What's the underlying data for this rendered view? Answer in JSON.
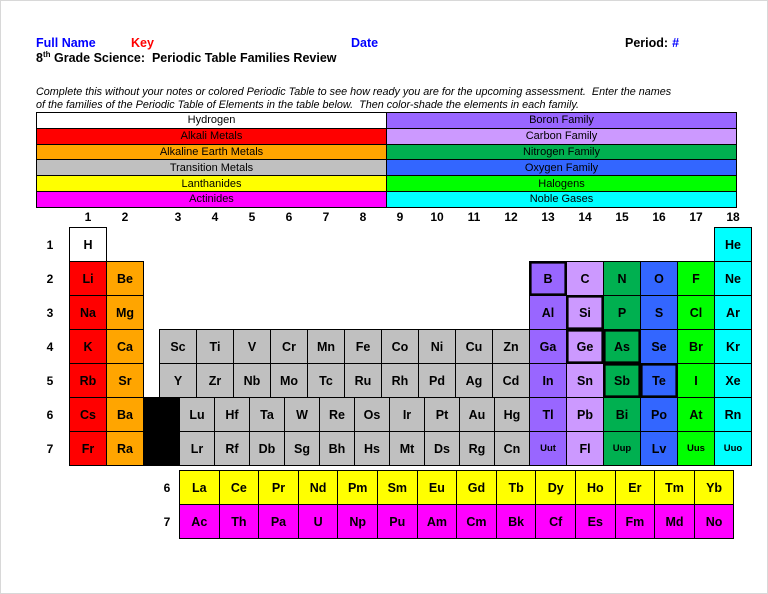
{
  "header": {
    "full_name_label": "Full Name",
    "key_label": "Key",
    "date_label": "Date",
    "period_label": "Period:",
    "period_value": "#",
    "title_num": "8",
    "title_sup": "th",
    "title_rest": " Grade Science:  Periodic Table Families Review"
  },
  "instructions": {
    "line1": "Complete this without your notes or colored Periodic Table to see how ready you are for the upcoming assessment.  Enter the names",
    "line2": "of the families of the Periodic Table of Elements in the table below.  Then color-shade the elements in each family."
  },
  "colors": {
    "text_blue": "#0000FF",
    "text_red": "#FF0000",
    "hydrogen": "#FFFFFF",
    "alkali": "#FF0000",
    "alkaline": "#FFA500",
    "transition": "#C0C0C0",
    "lanthanide": "#FFFF00",
    "actinide": "#FF00FF",
    "boron": "#9966FF",
    "carbon": "#CC99FF",
    "nitrogen": "#00B050",
    "oxygen": "#3366FF",
    "halogen": "#00FF00",
    "noble": "#00FFFF",
    "gap": "#000000"
  },
  "key_table": {
    "left": [
      {
        "label": "Hydrogen",
        "fam": "hydrogen"
      },
      {
        "label": "Alkali Metals",
        "fam": "alkali"
      },
      {
        "label": "Alkaline Earth Metals",
        "fam": "alkaline"
      },
      {
        "label": "Transition Metals",
        "fam": "transition"
      },
      {
        "label": "Lanthanides",
        "fam": "lanthanide"
      },
      {
        "label": "Actinides",
        "fam": "actinide"
      }
    ],
    "right": [
      {
        "label": "Boron Family",
        "fam": "boron"
      },
      {
        "label": "Carbon Family",
        "fam": "carbon"
      },
      {
        "label": "Nitrogen Family",
        "fam": "nitrogen"
      },
      {
        "label": "Oxygen Family",
        "fam": "oxygen"
      },
      {
        "label": "Halogens",
        "fam": "halogen"
      },
      {
        "label": "Noble Gases",
        "fam": "noble"
      }
    ]
  },
  "table": {
    "group_numbers": [
      "1",
      "2",
      "3",
      "4",
      "5",
      "6",
      "7",
      "8",
      "9",
      "10",
      "11",
      "12",
      "13",
      "14",
      "15",
      "16",
      "17",
      "18"
    ],
    "rows": [
      {
        "period": "1",
        "cells": [
          {
            "sym": "H",
            "col": 1,
            "fam": "hydrogen"
          },
          {
            "sym": "He",
            "col": 18,
            "fam": "noble"
          }
        ]
      },
      {
        "period": "2",
        "cells": [
          {
            "sym": "Li",
            "col": 1,
            "fam": "alkali"
          },
          {
            "sym": "Be",
            "col": 2,
            "fam": "alkaline"
          },
          {
            "sym": "B",
            "col": 13,
            "fam": "boron",
            "bold": true
          },
          {
            "sym": "C",
            "col": 14,
            "fam": "carbon"
          },
          {
            "sym": "N",
            "col": 15,
            "fam": "nitrogen"
          },
          {
            "sym": "O",
            "col": 16,
            "fam": "oxygen"
          },
          {
            "sym": "F",
            "col": 17,
            "fam": "halogen"
          },
          {
            "sym": "Ne",
            "col": 18,
            "fam": "noble"
          }
        ]
      },
      {
        "period": "3",
        "cells": [
          {
            "sym": "Na",
            "col": 1,
            "fam": "alkali"
          },
          {
            "sym": "Mg",
            "col": 2,
            "fam": "alkaline"
          },
          {
            "sym": "Al",
            "col": 13,
            "fam": "boron"
          },
          {
            "sym": "Si",
            "col": 14,
            "fam": "carbon",
            "bold": true
          },
          {
            "sym": "P",
            "col": 15,
            "fam": "nitrogen"
          },
          {
            "sym": "S",
            "col": 16,
            "fam": "oxygen"
          },
          {
            "sym": "Cl",
            "col": 17,
            "fam": "halogen"
          },
          {
            "sym": "Ar",
            "col": 18,
            "fam": "noble"
          }
        ]
      },
      {
        "period": "4",
        "cells": [
          {
            "sym": "K",
            "col": 1,
            "fam": "alkali"
          },
          {
            "sym": "Ca",
            "col": 2,
            "fam": "alkaline"
          },
          {
            "sym": "Sc",
            "col": 3,
            "fam": "transition"
          },
          {
            "sym": "Ti",
            "col": 4,
            "fam": "transition"
          },
          {
            "sym": "V",
            "col": 5,
            "fam": "transition"
          },
          {
            "sym": "Cr",
            "col": 6,
            "fam": "transition"
          },
          {
            "sym": "Mn",
            "col": 7,
            "fam": "transition"
          },
          {
            "sym": "Fe",
            "col": 8,
            "fam": "transition"
          },
          {
            "sym": "Co",
            "col": 9,
            "fam": "transition"
          },
          {
            "sym": "Ni",
            "col": 10,
            "fam": "transition"
          },
          {
            "sym": "Cu",
            "col": 11,
            "fam": "transition"
          },
          {
            "sym": "Zn",
            "col": 12,
            "fam": "transition"
          },
          {
            "sym": "Ga",
            "col": 13,
            "fam": "boron"
          },
          {
            "sym": "Ge",
            "col": 14,
            "fam": "carbon",
            "bold": true
          },
          {
            "sym": "As",
            "col": 15,
            "fam": "nitrogen",
            "bold": true
          },
          {
            "sym": "Se",
            "col": 16,
            "fam": "oxygen"
          },
          {
            "sym": "Br",
            "col": 17,
            "fam": "halogen"
          },
          {
            "sym": "Kr",
            "col": 18,
            "fam": "noble"
          }
        ]
      },
      {
        "period": "5",
        "cells": [
          {
            "sym": "Rb",
            "col": 1,
            "fam": "alkali"
          },
          {
            "sym": "Sr",
            "col": 2,
            "fam": "alkaline"
          },
          {
            "sym": "Y",
            "col": 3,
            "fam": "transition"
          },
          {
            "sym": "Zr",
            "col": 4,
            "fam": "transition"
          },
          {
            "sym": "Nb",
            "col": 5,
            "fam": "transition"
          },
          {
            "sym": "Mo",
            "col": 6,
            "fam": "transition"
          },
          {
            "sym": "Tc",
            "col": 7,
            "fam": "transition"
          },
          {
            "sym": "Ru",
            "col": 8,
            "fam": "transition"
          },
          {
            "sym": "Rh",
            "col": 9,
            "fam": "transition"
          },
          {
            "sym": "Pd",
            "col": 10,
            "fam": "transition"
          },
          {
            "sym": "Ag",
            "col": 11,
            "fam": "transition"
          },
          {
            "sym": "Cd",
            "col": 12,
            "fam": "transition"
          },
          {
            "sym": "In",
            "col": 13,
            "fam": "boron"
          },
          {
            "sym": "Sn",
            "col": 14,
            "fam": "carbon"
          },
          {
            "sym": "Sb",
            "col": 15,
            "fam": "nitrogen",
            "bold": true
          },
          {
            "sym": "Te",
            "col": 16,
            "fam": "oxygen",
            "bold": true
          },
          {
            "sym": "I",
            "col": 17,
            "fam": "halogen"
          },
          {
            "sym": "Xe",
            "col": 18,
            "fam": "noble"
          }
        ]
      },
      {
        "period": "6",
        "shifted": true,
        "cells": [
          {
            "sym": "Cs",
            "col": 1,
            "fam": "alkali"
          },
          {
            "sym": "Ba",
            "col": 2,
            "fam": "alkaline"
          },
          {
            "sym": "",
            "col": 0,
            "fam": "gap"
          },
          {
            "sym": "Lu",
            "col": 3,
            "fam": "transition"
          },
          {
            "sym": "Hf",
            "col": 4,
            "fam": "transition"
          },
          {
            "sym": "Ta",
            "col": 5,
            "fam": "transition"
          },
          {
            "sym": "W",
            "col": 6,
            "fam": "transition"
          },
          {
            "sym": "Re",
            "col": 7,
            "fam": "transition"
          },
          {
            "sym": "Os",
            "col": 8,
            "fam": "transition"
          },
          {
            "sym": "Ir",
            "col": 9,
            "fam": "transition"
          },
          {
            "sym": "Pt",
            "col": 10,
            "fam": "transition"
          },
          {
            "sym": "Au",
            "col": 11,
            "fam": "transition"
          },
          {
            "sym": "Hg",
            "col": 12,
            "fam": "transition"
          },
          {
            "sym": "Tl",
            "col": 13,
            "fam": "boron"
          },
          {
            "sym": "Pb",
            "col": 14,
            "fam": "carbon"
          },
          {
            "sym": "Bi",
            "col": 15,
            "fam": "nitrogen"
          },
          {
            "sym": "Po",
            "col": 16,
            "fam": "oxygen"
          },
          {
            "sym": "At",
            "col": 17,
            "fam": "halogen"
          },
          {
            "sym": "Rn",
            "col": 18,
            "fam": "noble"
          }
        ]
      },
      {
        "period": "7",
        "shifted": true,
        "cells": [
          {
            "sym": "Fr",
            "col": 1,
            "fam": "alkali"
          },
          {
            "sym": "Ra",
            "col": 2,
            "fam": "alkaline"
          },
          {
            "sym": "",
            "col": 0,
            "fam": "gap"
          },
          {
            "sym": "Lr",
            "col": 3,
            "fam": "transition"
          },
          {
            "sym": "Rf",
            "col": 4,
            "fam": "transition"
          },
          {
            "sym": "Db",
            "col": 5,
            "fam": "transition"
          },
          {
            "sym": "Sg",
            "col": 6,
            "fam": "transition"
          },
          {
            "sym": "Bh",
            "col": 7,
            "fam": "transition"
          },
          {
            "sym": "Hs",
            "col": 8,
            "fam": "transition"
          },
          {
            "sym": "Mt",
            "col": 9,
            "fam": "transition"
          },
          {
            "sym": "Ds",
            "col": 10,
            "fam": "transition"
          },
          {
            "sym": "Rg",
            "col": 11,
            "fam": "transition"
          },
          {
            "sym": "Cn",
            "col": 12,
            "fam": "transition"
          },
          {
            "sym": "Uut",
            "col": 13,
            "fam": "boron"
          },
          {
            "sym": "Fl",
            "col": 14,
            "fam": "carbon"
          },
          {
            "sym": "Uup",
            "col": 15,
            "fam": "nitrogen"
          },
          {
            "sym": "Lv",
            "col": 16,
            "fam": "oxygen"
          },
          {
            "sym": "Uus",
            "col": 17,
            "fam": "halogen"
          },
          {
            "sym": "Uuo",
            "col": 18,
            "fam": "noble"
          }
        ]
      }
    ],
    "fblock": [
      {
        "label": "6",
        "fam": "lanthanide",
        "symbols": [
          "La",
          "Ce",
          "Pr",
          "Nd",
          "Pm",
          "Sm",
          "Eu",
          "Gd",
          "Tb",
          "Dy",
          "Ho",
          "Er",
          "Tm",
          "Yb"
        ]
      },
      {
        "label": "7",
        "fam": "actinide",
        "symbols": [
          "Ac",
          "Th",
          "Pa",
          "U",
          "Np",
          "Pu",
          "Am",
          "Cm",
          "Bk",
          "Cf",
          "Es",
          "Fm",
          "Md",
          "No"
        ]
      }
    ]
  }
}
